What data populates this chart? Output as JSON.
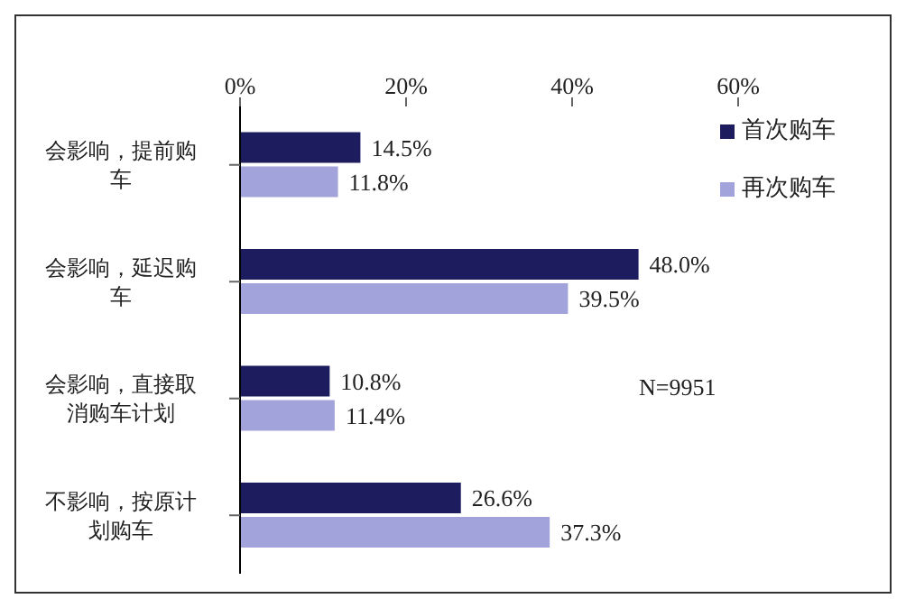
{
  "chart_data": {
    "type": "bar",
    "orientation": "horizontal",
    "categories": [
      "会影响，提前购车",
      "会影响，延迟购车",
      "会影响，直接取消购车计划",
      "不影响，按原计划购车"
    ],
    "series": [
      {
        "name": "首次购车",
        "color": "#1c1c5e",
        "values": [
          14.5,
          48.0,
          10.8,
          26.6
        ],
        "value_labels": [
          "14.5%",
          "48.0%",
          "10.8%",
          "26.6%"
        ]
      },
      {
        "name": "再次购车",
        "color": "#a3a3dc",
        "values": [
          11.8,
          39.5,
          11.4,
          37.3
        ],
        "value_labels": [
          "11.8%",
          "39.5%",
          "11.4%",
          "37.3%"
        ]
      }
    ],
    "xlim": [
      0,
      60
    ],
    "xticks": [
      {
        "value": 0,
        "label": "0%"
      },
      {
        "value": 20,
        "label": "20%"
      },
      {
        "value": 40,
        "label": "40%"
      },
      {
        "value": 60,
        "label": "60%"
      }
    ],
    "legend": "top right",
    "annotations": [
      "N=9951"
    ]
  }
}
